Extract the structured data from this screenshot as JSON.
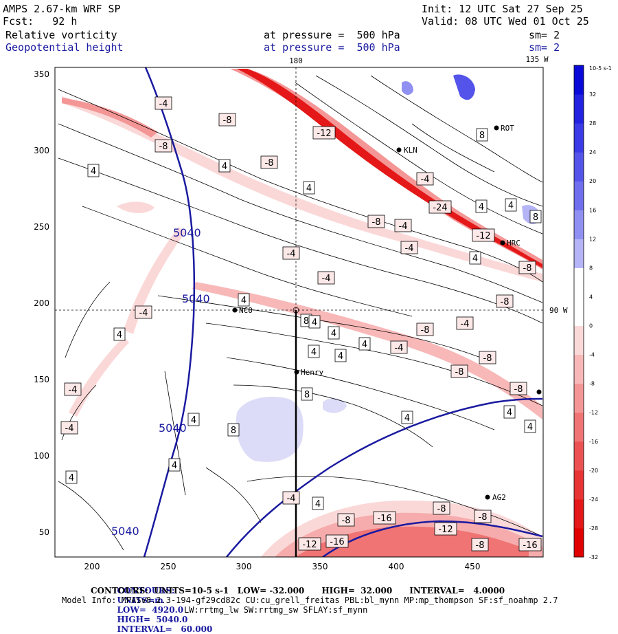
{
  "header": {
    "model": "AMPS 2.67-km WRF SP",
    "init": "Init: 12 UTC Sat 27 Sep 25",
    "fcst": "Fcst:   92 h",
    "valid": "Valid: 08 UTC Wed 01 Oct 25",
    "field1": "Relative vorticity",
    "field2": "Geopotential height",
    "pressure1": "at pressure =  500 hPa",
    "pressure2": "at pressure =  500 hPa",
    "sm1": "sm= 2",
    "sm2": "sm= 2"
  },
  "map": {
    "lon_top_180": "180",
    "lon_top_135W": "135 W",
    "lon_right_90W": "90 W",
    "x_ticks": [
      "200",
      "250",
      "300",
      "350",
      "400",
      "450"
    ],
    "y_ticks": [
      "350",
      "300",
      "250",
      "200",
      "150",
      "100",
      "50"
    ],
    "stations": [
      {
        "name": "ROT"
      },
      {
        "name": "KLN"
      },
      {
        "name": "HRC"
      },
      {
        "name": "NCO"
      },
      {
        "name": "Henry"
      },
      {
        "name": "AG2"
      }
    ],
    "height_labels": [
      "5040",
      "5040",
      "5040",
      "5040"
    ],
    "vort_labels": [
      "-4",
      "-8",
      "-8",
      "-12",
      "4",
      "4",
      "-8",
      "4",
      "-4",
      "-24",
      "-8",
      "-4",
      "4",
      "-12",
      "4",
      "8",
      "8",
      "8",
      "4",
      "-8",
      "-4",
      "-4",
      "-4",
      "4",
      "-4",
      "4",
      "-8",
      "-4",
      "4",
      "4",
      "-8",
      "4",
      "4",
      "-4",
      "4",
      "-8",
      "-4",
      "-8",
      "8",
      "4",
      "-8",
      "4",
      "8",
      "4",
      "4",
      "4",
      "-4",
      "-8",
      "-16",
      "-8",
      "-12",
      "-16",
      "-12",
      "-8",
      "-8",
      "-16",
      "4",
      "-4",
      "4"
    ]
  },
  "colorbar": {
    "unit": "10-5 s-1",
    "labels": [
      "32",
      "28",
      "24",
      "20",
      "16",
      "12",
      "8",
      "4",
      "0",
      "-4",
      "-8",
      "-12",
      "-16",
      "-20",
      "-24",
      "-28",
      "-32"
    ],
    "colors": [
      "#0a0ad8",
      "#2222e0",
      "#3a3ae6",
      "#5454ea",
      "#6e6eee",
      "#9090f2",
      "#b4b4f6",
      "#ffffff",
      "#ffffff",
      "#fbd8d8",
      "#f8b8b8",
      "#f49696",
      "#f07474",
      "#ec5252",
      "#e83434",
      "#e41818",
      "#e00000"
    ]
  },
  "footer": {
    "line1_label": "CONTOURS:",
    "line1_units": "UNITS=m",
    "line1_low": "LOW=  4920.0",
    "line1_high": "HIGH=  5040.0",
    "line1_int": "INTERVAL=   60.000",
    "line2": "CONTOURS:  UNITS=10-5 s-1   LOW= -32.000      HIGH=  32.000      INTERVAL=   4.0000",
    "line3": "Model Info: MPASv8.2.3-194-gf29cd82c CU:cu_grell_freitas PBL:bl_mynn MP:mp_thompson SF:sf_noahmp 2.7",
    "line4": "LW:rrtmg_lw SW:rrtmg_sw SFLAY:sf_mynn"
  }
}
